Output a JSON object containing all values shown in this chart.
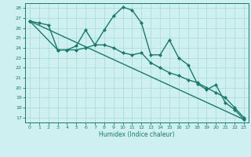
{
  "line1_x": [
    0,
    1,
    2,
    3,
    4,
    5,
    6,
    7,
    8,
    9,
    10,
    11,
    12,
    13,
    14,
    15,
    16,
    17,
    18,
    19,
    20,
    21,
    22,
    23
  ],
  "line1_y": [
    26.7,
    26.5,
    26.3,
    23.8,
    23.8,
    23.8,
    24.0,
    24.3,
    25.8,
    27.2,
    28.1,
    27.8,
    26.5,
    23.3,
    23.3,
    24.8,
    23.0,
    22.3,
    20.4,
    19.8,
    20.3,
    18.5,
    17.8,
    16.8
  ],
  "line2_x": [
    0,
    3,
    4,
    5,
    6,
    7,
    8,
    9,
    10,
    11,
    12,
    13,
    14,
    15,
    16,
    17,
    18,
    19,
    20,
    21,
    22,
    23
  ],
  "line2_y": [
    26.7,
    23.8,
    23.8,
    24.2,
    25.8,
    24.3,
    24.3,
    24.0,
    23.5,
    23.3,
    23.5,
    22.5,
    22.0,
    21.5,
    21.2,
    20.8,
    20.5,
    20.0,
    19.5,
    19.0,
    18.0,
    17.0
  ],
  "line3_x": [
    0,
    23
  ],
  "line3_y": [
    26.7,
    16.8
  ],
  "color": "#1a7a6e",
  "bg_color": "#cff0f0",
  "grid_color": "#a8d8d8",
  "xlabel": "Humidex (Indice chaleur)",
  "xlim": [
    -0.5,
    23.5
  ],
  "ylim": [
    16.5,
    28.5
  ],
  "yticks": [
    17,
    18,
    19,
    20,
    21,
    22,
    23,
    24,
    25,
    26,
    27,
    28
  ],
  "xticks": [
    0,
    1,
    2,
    3,
    4,
    5,
    6,
    7,
    8,
    9,
    10,
    11,
    12,
    13,
    14,
    15,
    16,
    17,
    18,
    19,
    20,
    21,
    22,
    23
  ],
  "marker": "D",
  "marker_size": 2.0,
  "linewidth": 1.0
}
